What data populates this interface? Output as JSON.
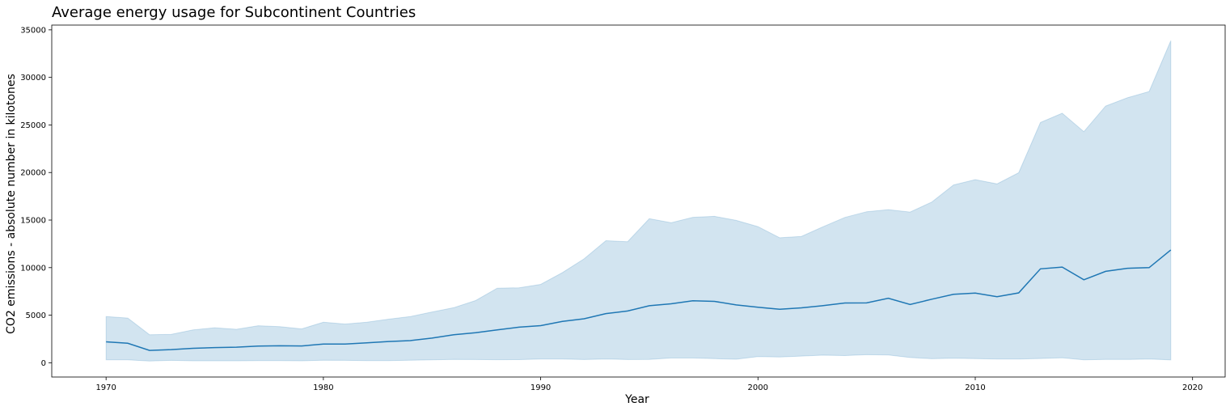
{
  "chart_data": {
    "type": "area",
    "title": "Average energy usage for Subcontinent Countries",
    "xlabel": "Year",
    "ylabel": "CO2 emissions - absolute number in kilotones",
    "xlim": [
      1967.5,
      2021.5
    ],
    "ylim": [
      -1500,
      35500
    ],
    "xticks": [
      1970,
      1980,
      1990,
      2000,
      2010,
      2020
    ],
    "yticks": [
      0,
      5000,
      10000,
      15000,
      20000,
      25000,
      30000,
      35000
    ],
    "grid": false,
    "x": [
      1970,
      1971,
      1972,
      1973,
      1974,
      1975,
      1976,
      1977,
      1978,
      1979,
      1980,
      1981,
      1982,
      1983,
      1984,
      1985,
      1986,
      1987,
      1988,
      1989,
      1990,
      1991,
      1992,
      1993,
      1994,
      1995,
      1996,
      1997,
      1998,
      1999,
      2000,
      2001,
      2002,
      2003,
      2004,
      2005,
      2006,
      2007,
      2008,
      2009,
      2010,
      2011,
      2012,
      2013,
      2014,
      2015,
      2016,
      2017,
      2018,
      2019
    ],
    "series": [
      {
        "line_color": "#1f77b4",
        "band_color": "#1f77b4",
        "values": [
          2200,
          2050,
          1300,
          1380,
          1520,
          1600,
          1640,
          1750,
          1780,
          1770,
          1960,
          1960,
          2090,
          2230,
          2330,
          2590,
          2940,
          3150,
          3460,
          3740,
          3900,
          4340,
          4620,
          5170,
          5440,
          5990,
          6200,
          6510,
          6450,
          6080,
          5830,
          5620,
          5770,
          6000,
          6280,
          6290,
          6780,
          6120,
          6680,
          7190,
          7320,
          6940,
          7350,
          9870,
          10060,
          8720,
          9610,
          9930,
          10000,
          11860
        ],
        "lower": [
          300,
          300,
          180,
          250,
          200,
          200,
          200,
          220,
          230,
          200,
          260,
          250,
          220,
          230,
          260,
          300,
          350,
          340,
          320,
          330,
          400,
          400,
          340,
          400,
          340,
          350,
          500,
          500,
          430,
          370,
          650,
          600,
          700,
          800,
          750,
          850,
          820,
          550,
          420,
          480,
          430,
          400,
          400,
          450,
          520,
          300,
          350,
          350,
          400,
          300
        ],
        "upper": [
          4850,
          4700,
          2950,
          2990,
          3460,
          3680,
          3520,
          3890,
          3790,
          3560,
          4260,
          4070,
          4260,
          4580,
          4850,
          5340,
          5790,
          6540,
          7840,
          7880,
          8240,
          9480,
          10930,
          12830,
          12730,
          15150,
          14720,
          15290,
          15390,
          14970,
          14310,
          13140,
          13280,
          14300,
          15280,
          15880,
          16100,
          15840,
          16900,
          18690,
          19250,
          18800,
          19980,
          25260,
          26240,
          24300,
          26990,
          27860,
          28520,
          33860
        ]
      }
    ]
  }
}
